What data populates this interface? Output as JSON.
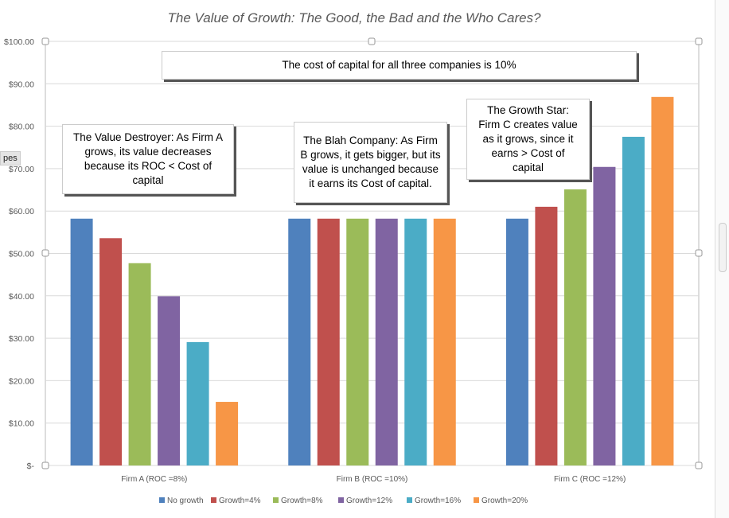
{
  "chart_data": {
    "type": "bar",
    "title": "The Value of Growth: The Good, the Bad and the Who Cares?",
    "categories": [
      "Firm A (ROC =8%)",
      "Firm B (ROC =10%)",
      "Firm C (ROC =12%)"
    ],
    "series": [
      {
        "name": "No growth",
        "color": "#4f81bd",
        "values": [
          58.2,
          58.2,
          58.2
        ]
      },
      {
        "name": "Growth=4%",
        "color": "#c0504d",
        "values": [
          53.6,
          58.2,
          61.0
        ]
      },
      {
        "name": "Growth=8%",
        "color": "#9bbb59",
        "values": [
          47.7,
          58.2,
          65.1
        ]
      },
      {
        "name": "Growth=12%",
        "color": "#8064a2",
        "values": [
          39.9,
          58.2,
          70.4
        ]
      },
      {
        "name": "Growth=16%",
        "color": "#4bacc6",
        "values": [
          29.1,
          58.2,
          77.5
        ]
      },
      {
        "name": "Growth=20%",
        "color": "#f79646",
        "values": [
          15.0,
          58.2,
          86.9
        ]
      }
    ],
    "yticks": [
      "$-",
      "$10.00",
      "$20.00",
      "$30.00",
      "$40.00",
      "$50.00",
      "$60.00",
      "$70.00",
      "$80.00",
      "$90.00",
      "$100.00"
    ],
    "ylim": [
      0,
      100
    ],
    "grid": true,
    "legend": "bottom",
    "annotations": [
      "The cost of capital for all three companies is 10%",
      "The Value Destroyer: As Firm A grows, its value decreases because its ROC < Cost of capital",
      "The Blah Company: As Firm B grows, it gets bigger, but its value is unchanged because it earns its Cost of capital.",
      "The Growth Star: Firm C creates value as it grows, since it earns > Cost of capital"
    ]
  },
  "ui": {
    "tooltip": "pes"
  }
}
